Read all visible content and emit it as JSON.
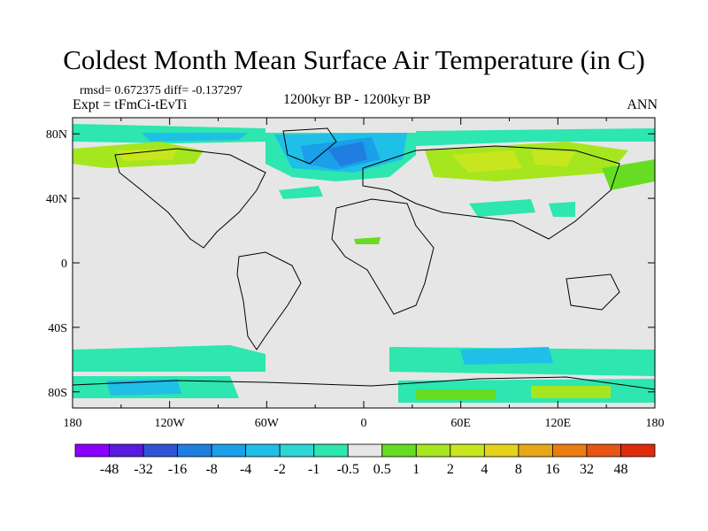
{
  "title": "Coldest Month Mean Surface Air Temperature (in C)",
  "stats": "rmsd= 0.672375 diff= -0.137297",
  "experiment": "Expt = tFmCi-tEvTi",
  "period": "1200kyr BP - 1200kyr BP",
  "season": "ANN",
  "map": {
    "lon_ticks": [
      "180",
      "120W",
      "60W",
      "0",
      "60E",
      "120E",
      "180"
    ],
    "lat_ticks": [
      "80N",
      "40N",
      "0",
      "40S",
      "80S"
    ],
    "lon_range": [
      -180,
      180
    ],
    "lat_range": [
      -90,
      90
    ],
    "background_color": "#e6e6e6"
  },
  "colorbar": {
    "colors": [
      "#8b00ff",
      "#5a18e0",
      "#2f55d6",
      "#1f7fe0",
      "#1a9fe8",
      "#1fbfe8",
      "#2dd6d6",
      "#2de6b0",
      "#e6e6e6",
      "#66dd22",
      "#a6e61e",
      "#c8e61e",
      "#e6d21a",
      "#e6a817",
      "#ea7d12",
      "#e65512",
      "#e02a0c"
    ],
    "labels": [
      "-48",
      "-32",
      "-16",
      "-8",
      "-4",
      "-2",
      "-1",
      "-0.5",
      "0.5",
      "1",
      "2",
      "4",
      "8",
      "16",
      "32",
      "48"
    ]
  }
}
